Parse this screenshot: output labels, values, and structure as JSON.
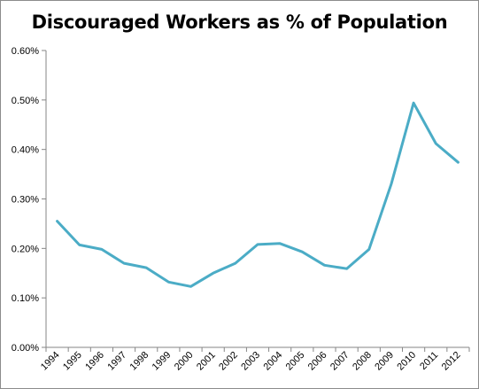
{
  "chart_data": {
    "type": "line",
    "title": "Discouraged Workers as % of Population",
    "xlabel": "",
    "ylabel": "",
    "x": [
      "1994",
      "1995",
      "1996",
      "1997",
      "1998",
      "1999",
      "2000",
      "2001",
      "2002",
      "2003",
      "2004",
      "2005",
      "2006",
      "2007",
      "2008",
      "2009",
      "2010",
      "2011",
      "2012"
    ],
    "series": [
      {
        "values": [
          0.255,
          0.207,
          0.198,
          0.17,
          0.161,
          0.132,
          0.123,
          0.15,
          0.17,
          0.208,
          0.21,
          0.193,
          0.166,
          0.159,
          0.198,
          0.33,
          0.494,
          0.412,
          0.374
        ]
      }
    ],
    "ylim": [
      0,
      0.6
    ],
    "yticks": [
      "0.00%",
      "0.10%",
      "0.20%",
      "0.30%",
      "0.40%",
      "0.50%",
      "0.60%"
    ],
    "grid": false,
    "legend": "none",
    "line_color": "#4bacc6"
  }
}
